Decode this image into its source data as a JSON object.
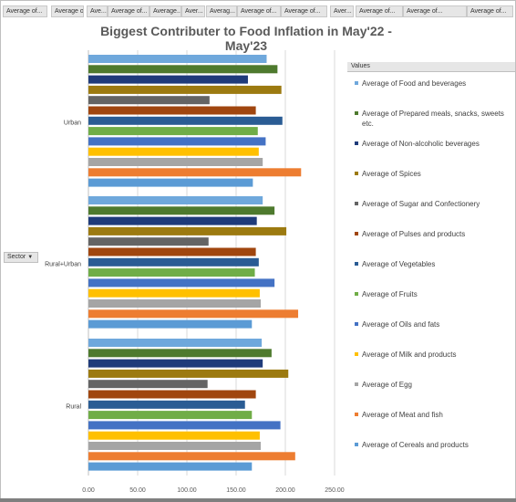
{
  "top_fields": [
    "Average of...",
    "Average of...",
    "Ave...",
    "Average of...",
    "Average...",
    "Aver...",
    "Averag...",
    "Average of...",
    "Average of...",
    "Aver...",
    "Average of...",
    "Average of...",
    "Average of..."
  ],
  "sector_button": {
    "label": "Sector"
  },
  "legend_header": "Values",
  "chart_data": {
    "type": "bar",
    "orientation": "horizontal",
    "title": "Biggest Contributer to Food Inflation in May'22 - May'23",
    "categories": [
      "Urban",
      "Rural+Urban",
      "Rural"
    ],
    "xlim": [
      0,
      250
    ],
    "xticks": [
      "0.00",
      "50.00",
      "100.00",
      "150.00",
      "200.00",
      "250.00"
    ],
    "gridlines": true,
    "legend_position": "right",
    "series": [
      {
        "name": "Average of Food and beverages",
        "color": "#6fa8dc",
        "values": [
          181,
          177,
          176
        ]
      },
      {
        "name": "Average of Prepared meals, snacks, sweets etc.",
        "color": "#4e7a2e",
        "values": [
          192,
          189,
          186
        ]
      },
      {
        "name": "Average of Non-alcoholic beverages",
        "color": "#1f3b7a",
        "values": [
          162,
          171,
          177
        ]
      },
      {
        "name": "Average of Spices",
        "color": "#9c7a10",
        "values": [
          196,
          201,
          203
        ]
      },
      {
        "name": "Average of Sugar and Confectionery",
        "color": "#646464",
        "values": [
          123,
          122,
          121
        ]
      },
      {
        "name": "Average of Pulses and products",
        "color": "#a0460f",
        "values": [
          170,
          170,
          170
        ]
      },
      {
        "name": "Average of Vegetables",
        "color": "#2a5c94",
        "values": [
          197,
          173,
          159
        ]
      },
      {
        "name": "Average of Fruits",
        "color": "#70ad47",
        "values": [
          172,
          169,
          166
        ]
      },
      {
        "name": "Average of Oils and fats",
        "color": "#4472c4",
        "values": [
          180,
          189,
          195
        ]
      },
      {
        "name": "Average of Milk and products",
        "color": "#ffc000",
        "values": [
          173,
          174,
          174
        ]
      },
      {
        "name": "Average of Egg",
        "color": "#a5a5a5",
        "values": [
          177,
          175,
          175
        ]
      },
      {
        "name": "Average of Meat and fish",
        "color": "#ed7d31",
        "values": [
          216,
          213,
          210
        ]
      },
      {
        "name": "Average of Cereals and products",
        "color": "#5b9bd5",
        "values": [
          167,
          166,
          166
        ]
      }
    ]
  }
}
